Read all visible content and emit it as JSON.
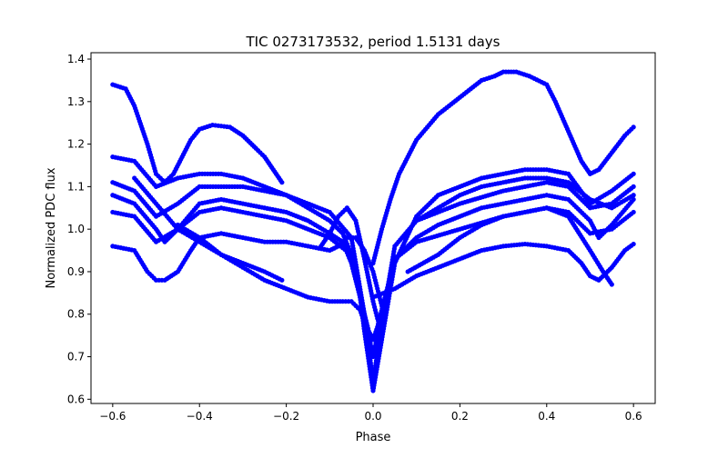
{
  "chart_data": {
    "type": "scatter",
    "title": "TIC 0273173532, period 1.5131 days",
    "xlabel": "Phase",
    "ylabel": "Normalized PDC flux",
    "xlim": [
      -0.65,
      0.65
    ],
    "ylim": [
      0.59,
      1.415
    ],
    "xticks": [
      -0.6,
      -0.4,
      -0.2,
      0.0,
      0.2,
      0.4,
      0.6
    ],
    "xtick_labels": [
      "−0.6",
      "−0.4",
      "−0.2",
      "0.0",
      "0.2",
      "0.4",
      "0.6"
    ],
    "yticks": [
      0.6,
      0.7,
      0.8,
      0.9,
      1.0,
      1.1,
      1.2,
      1.3,
      1.4
    ],
    "ytick_labels": [
      "0.6",
      "0.7",
      "0.8",
      "0.9",
      "1.0",
      "1.1",
      "1.2",
      "1.3",
      "1.4"
    ],
    "grid": false,
    "marker_color": "#0000ff",
    "series": [
      {
        "x": [
          -0.6,
          -0.55,
          -0.5,
          -0.48,
          -0.45,
          -0.4,
          -0.35,
          -0.3,
          -0.25,
          -0.2,
          -0.15,
          -0.1,
          -0.07,
          -0.05,
          -0.03,
          -0.01,
          0.0,
          0.01,
          0.03,
          0.05,
          0.1,
          0.15,
          0.2,
          0.25,
          0.3,
          0.35,
          0.4,
          0.45,
          0.5,
          0.52,
          0.55,
          0.6
        ],
        "y": [
          1.08,
          1.06,
          1.0,
          0.97,
          1.0,
          1.06,
          1.07,
          1.06,
          1.05,
          1.04,
          1.02,
          0.99,
          0.97,
          0.92,
          0.84,
          0.76,
          0.74,
          0.77,
          0.85,
          0.93,
          0.98,
          1.01,
          1.03,
          1.05,
          1.06,
          1.07,
          1.08,
          1.07,
          1.02,
          0.98,
          1.01,
          1.07
        ]
      },
      {
        "x": [
          -0.6,
          -0.55,
          -0.5,
          -0.45,
          -0.4,
          -0.35,
          -0.3,
          -0.25,
          -0.2,
          -0.15,
          -0.1,
          -0.05,
          -0.02,
          0.0,
          0.02,
          0.05,
          0.1,
          0.2,
          0.3,
          0.4,
          0.45,
          0.5,
          0.55,
          0.6
        ],
        "y": [
          1.04,
          1.03,
          0.97,
          1.0,
          1.04,
          1.05,
          1.04,
          1.03,
          1.02,
          1.0,
          0.98,
          0.94,
          0.8,
          0.7,
          0.8,
          0.93,
          0.97,
          1.0,
          1.03,
          1.05,
          1.04,
          0.99,
          1.0,
          1.04
        ]
      },
      {
        "x": [
          -0.6,
          -0.55,
          -0.5,
          -0.45,
          -0.4,
          -0.3,
          -0.2,
          -0.1,
          -0.05,
          -0.02,
          0.0,
          0.02,
          0.05,
          0.1,
          0.2,
          0.3,
          0.4,
          0.45,
          0.5,
          0.55,
          0.6
        ],
        "y": [
          1.11,
          1.09,
          1.03,
          1.06,
          1.1,
          1.1,
          1.08,
          1.04,
          0.98,
          0.8,
          0.64,
          0.78,
          0.96,
          1.02,
          1.06,
          1.09,
          1.11,
          1.1,
          1.05,
          1.06,
          1.1
        ]
      },
      {
        "x": [
          -0.6,
          -0.55,
          -0.5,
          -0.45,
          -0.4,
          -0.35,
          -0.3,
          -0.25,
          -0.2,
          -0.15,
          -0.1,
          -0.07,
          -0.05,
          -0.03,
          -0.02,
          0.0,
          0.02,
          0.05,
          0.1,
          0.15,
          0.2,
          0.25,
          0.3,
          0.35,
          0.4,
          0.45,
          0.5,
          0.55,
          0.6
        ],
        "y": [
          1.17,
          1.16,
          1.1,
          1.12,
          1.13,
          1.13,
          1.12,
          1.1,
          1.08,
          1.05,
          1.02,
          0.99,
          0.94,
          0.84,
          0.76,
          0.62,
          0.74,
          0.92,
          1.03,
          1.08,
          1.1,
          1.12,
          1.13,
          1.14,
          1.14,
          1.13,
          1.06,
          1.09,
          1.13
        ]
      },
      {
        "x": [
          -0.6,
          -0.57,
          -0.55,
          -0.52,
          -0.5,
          -0.48,
          -0.46,
          -0.44,
          -0.42,
          -0.4,
          -0.37,
          -0.33,
          -0.3,
          -0.27,
          -0.25,
          -0.23,
          -0.21
        ],
        "y": [
          1.34,
          1.33,
          1.29,
          1.2,
          1.13,
          1.11,
          1.13,
          1.17,
          1.21,
          1.235,
          1.245,
          1.24,
          1.22,
          1.19,
          1.17,
          1.14,
          1.11
        ]
      },
      {
        "x": [
          -0.6,
          -0.55,
          -0.52,
          -0.5,
          -0.48,
          -0.45,
          -0.42,
          -0.4,
          -0.35,
          -0.3,
          -0.25,
          -0.2,
          -0.15,
          -0.1,
          -0.08,
          -0.06,
          -0.04,
          -0.02,
          0.0,
          0.01,
          0.02
        ],
        "y": [
          0.96,
          0.95,
          0.9,
          0.88,
          0.88,
          0.9,
          0.95,
          0.98,
          0.99,
          0.98,
          0.97,
          0.97,
          0.96,
          0.95,
          0.96,
          0.98,
          0.98,
          0.95,
          0.9,
          0.86,
          0.82
        ]
      },
      {
        "x": [
          -0.45,
          -0.4,
          -0.35,
          -0.3,
          -0.25,
          -0.2,
          -0.15,
          -0.1,
          -0.07,
          -0.05,
          -0.03,
          -0.02
        ],
        "y": [
          1.01,
          0.98,
          0.94,
          0.91,
          0.88,
          0.86,
          0.84,
          0.83,
          0.83,
          0.83,
          0.81,
          0.78
        ]
      },
      {
        "x": [
          -0.55,
          -0.5,
          -0.45,
          -0.4,
          -0.35,
          -0.3,
          -0.25,
          -0.21
        ],
        "y": [
          1.12,
          1.06,
          1.0,
          0.97,
          0.94,
          0.92,
          0.9,
          0.88
        ]
      },
      {
        "x": [
          -0.12,
          -0.1,
          -0.08,
          -0.06,
          -0.04,
          -0.02,
          0.0,
          0.01,
          0.02
        ],
        "y": [
          0.96,
          0.99,
          1.03,
          1.05,
          1.02,
          0.93,
          0.83,
          0.79,
          0.76
        ]
      },
      {
        "x": [
          0.0,
          0.02,
          0.04,
          0.06,
          0.08,
          0.1,
          0.15,
          0.2,
          0.25,
          0.28,
          0.3,
          0.33,
          0.36,
          0.4,
          0.42,
          0.45,
          0.48,
          0.5,
          0.52,
          0.55,
          0.58,
          0.6
        ],
        "y": [
          0.92,
          1.0,
          1.07,
          1.13,
          1.17,
          1.21,
          1.27,
          1.31,
          1.35,
          1.36,
          1.37,
          1.37,
          1.36,
          1.34,
          1.3,
          1.23,
          1.16,
          1.13,
          1.14,
          1.18,
          1.22,
          1.24
        ]
      },
      {
        "x": [
          0.0,
          0.05,
          0.1,
          0.15,
          0.2,
          0.25,
          0.3,
          0.35,
          0.4,
          0.45,
          0.48,
          0.5,
          0.52,
          0.55,
          0.58,
          0.6
        ],
        "y": [
          0.84,
          0.86,
          0.89,
          0.91,
          0.93,
          0.95,
          0.96,
          0.965,
          0.96,
          0.95,
          0.92,
          0.89,
          0.88,
          0.91,
          0.95,
          0.965
        ]
      },
      {
        "x": [
          0.08,
          0.15,
          0.2,
          0.25,
          0.3,
          0.35,
          0.4,
          0.45,
          0.5,
          0.53,
          0.55
        ],
        "y": [
          0.9,
          0.94,
          0.98,
          1.01,
          1.03,
          1.04,
          1.05,
          1.03,
          0.95,
          0.9,
          0.87
        ]
      },
      {
        "x": [
          0.1,
          0.15,
          0.2,
          0.25,
          0.3,
          0.35,
          0.4,
          0.45,
          0.5,
          0.55,
          0.6
        ],
        "y": [
          1.02,
          1.05,
          1.08,
          1.1,
          1.11,
          1.12,
          1.12,
          1.11,
          1.07,
          1.05,
          1.08
        ]
      }
    ]
  }
}
